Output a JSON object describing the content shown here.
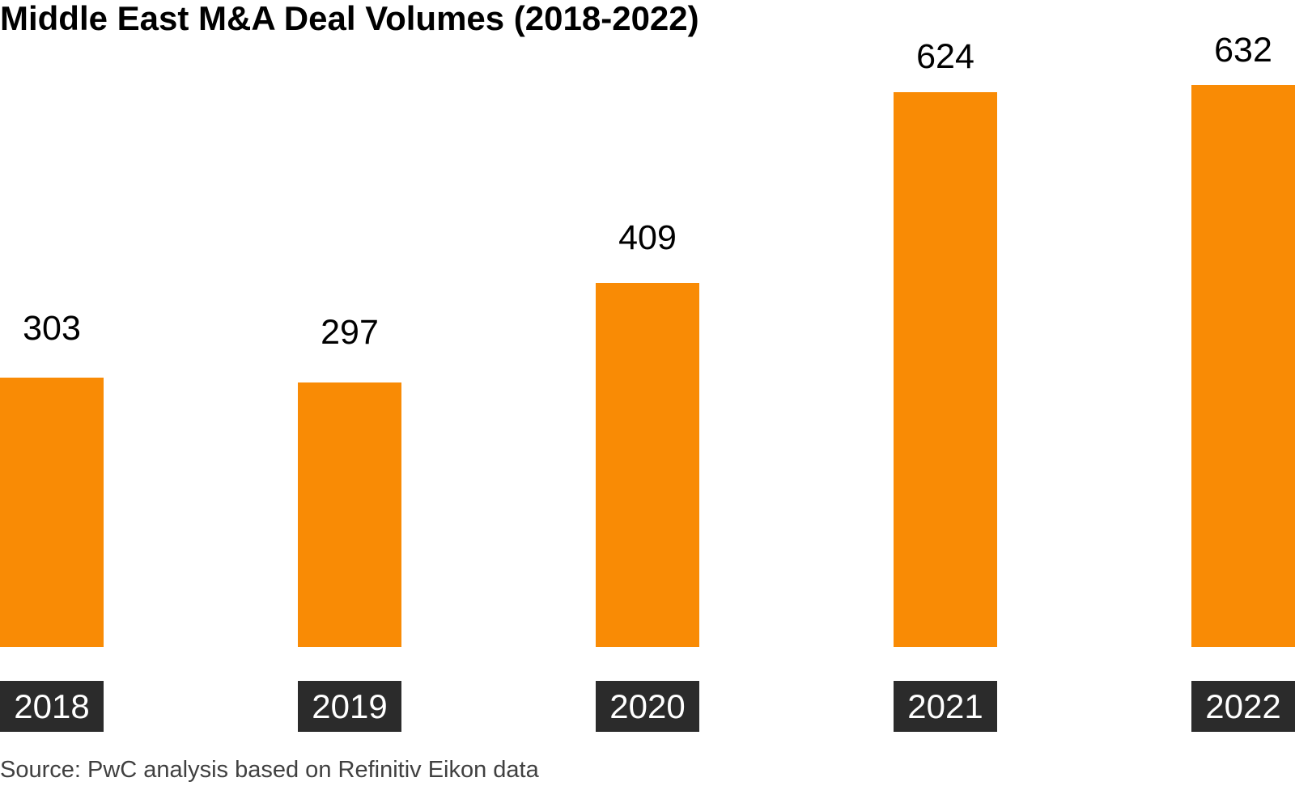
{
  "chart_data": {
    "type": "bar",
    "title": "Middle East M&A Deal Volumes (2018-2022)",
    "categories": [
      "2018",
      "2019",
      "2020",
      "2021",
      "2022"
    ],
    "values": [
      303,
      297,
      409,
      624,
      632
    ],
    "xlabel": "",
    "ylabel": "",
    "axes_hidden": true,
    "grid": false,
    "legend": false,
    "value_labels_shown": true,
    "bar_color": "#F98B05",
    "value_label_color": "#000000",
    "category_label_bg": "#2B2B2B",
    "category_label_color": "#FFFFFF"
  },
  "footer": {
    "source": "Source: PwC analysis based on Refinitiv Eikon data"
  }
}
